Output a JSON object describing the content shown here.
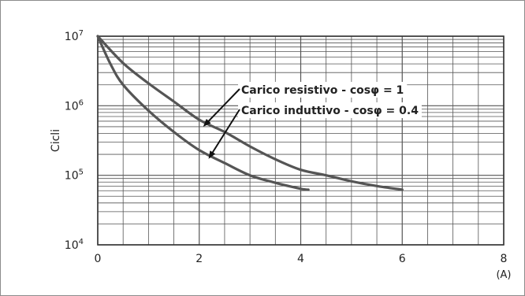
{
  "chart_data": {
    "type": "line",
    "ylabel": "Cicli",
    "xunit": "(A)",
    "x_ticks": [
      "0",
      "2",
      "4",
      "6",
      "8"
    ],
    "y_ticks": [
      {
        "base": "10",
        "exp": "4"
      },
      {
        "base": "10",
        "exp": "5"
      },
      {
        "base": "10",
        "exp": "6"
      },
      {
        "base": "10",
        "exp": "7"
      }
    ],
    "xlim": [
      0,
      8
    ],
    "ylim": [
      10000,
      10000000
    ],
    "yscale": "log",
    "grid": true,
    "grid_color": "#555555",
    "line_color": "#555555",
    "series": [
      {
        "name": "Carico resistivo - cosφ = 1",
        "points": [
          [
            0,
            10000000
          ],
          [
            0.5,
            4100000
          ],
          [
            1,
            2100000
          ],
          [
            1.5,
            1150000
          ],
          [
            2,
            630000
          ],
          [
            2.5,
            420000
          ],
          [
            3,
            260000
          ],
          [
            3.5,
            170000
          ],
          [
            4,
            120000
          ],
          [
            4.5,
            100000
          ],
          [
            5,
            82000
          ],
          [
            5.5,
            70000
          ],
          [
            6,
            62000
          ]
        ]
      },
      {
        "name": "Carico induttivo - cosφ = 0.4",
        "points": [
          [
            0,
            10000000
          ],
          [
            0.25,
            4000000
          ],
          [
            0.5,
            2000000
          ],
          [
            1,
            850000
          ],
          [
            1.5,
            420000
          ],
          [
            2,
            230000
          ],
          [
            2.5,
            150000
          ],
          [
            3,
            100000
          ],
          [
            3.5,
            78000
          ],
          [
            4,
            64000
          ],
          [
            4.15,
            62000
          ]
        ]
      }
    ],
    "annotations": [
      {
        "text": "Carico resistivo - cosφ = 1",
        "arrow_to": [
          2.1,
          520000
        ]
      },
      {
        "text": "Carico induttivo - cosφ = 0.4",
        "arrow_to": [
          2.2,
          180000
        ]
      }
    ]
  }
}
